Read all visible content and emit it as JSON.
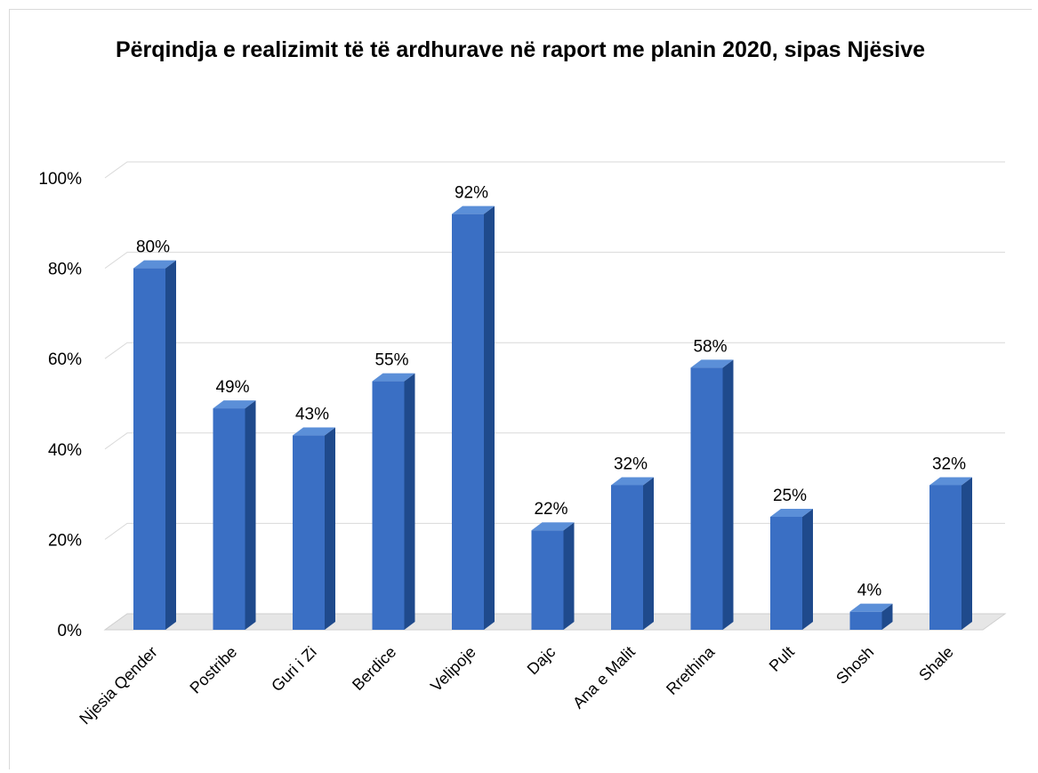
{
  "chart_data": {
    "type": "bar",
    "title": "Përqindja e realizimit të të ardhurave në raport me planin 2020, sipas Njësive",
    "xlabel": "",
    "ylabel": "",
    "categories": [
      "Njesia Qender",
      "Postribe",
      "Guri i Zi",
      "Berdice",
      "Velipoje",
      "Dajc",
      "Ana e Malit",
      "Rrethina",
      "Pult",
      "Shosh",
      "Shale"
    ],
    "values": [
      0.8,
      0.49,
      0.43,
      0.55,
      0.92,
      0.22,
      0.32,
      0.58,
      0.25,
      0.04,
      0.32
    ],
    "data_labels": [
      "80%",
      "49%",
      "43%",
      "55%",
      "92%",
      "22%",
      "32%",
      "58%",
      "25%",
      "4%",
      "32%"
    ],
    "ylim": [
      0,
      1
    ],
    "yticks": [
      0,
      0.2,
      0.4,
      0.6,
      0.8,
      1
    ],
    "ytick_labels": [
      "0%",
      "20%",
      "40%",
      "60%",
      "80%",
      "100%"
    ],
    "grid": true,
    "legend": "none",
    "style": "3d-columns",
    "colors": {
      "bar_front": "#3a6fc4",
      "bar_side": "#1f4a8c",
      "bar_top": "#5b8fd8",
      "grid": "#d9d9d9",
      "floor": "#e6e6e6"
    }
  }
}
